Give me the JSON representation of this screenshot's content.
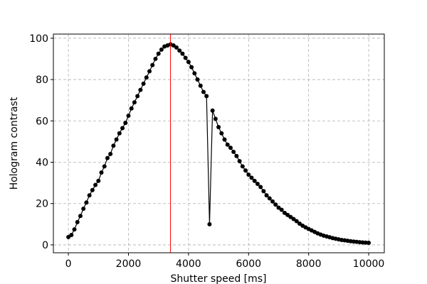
{
  "chart_data": {
    "type": "line",
    "xlabel": "Shutter speed [ms]",
    "ylabel": "Hologram contrast",
    "x": [
      0,
      100,
      200,
      300,
      400,
      500,
      600,
      700,
      800,
      900,
      1000,
      1100,
      1200,
      1300,
      1400,
      1500,
      1600,
      1700,
      1800,
      1900,
      2000,
      2100,
      2200,
      2300,
      2400,
      2500,
      2600,
      2700,
      2800,
      2900,
      3000,
      3100,
      3200,
      3300,
      3400,
      3500,
      3600,
      3700,
      3800,
      3900,
      4000,
      4100,
      4200,
      4300,
      4400,
      4500,
      4600,
      4700,
      4800,
      4900,
      5000,
      5100,
      5200,
      5300,
      5400,
      5500,
      5600,
      5700,
      5800,
      5900,
      6000,
      6100,
      6200,
      6300,
      6400,
      6500,
      6600,
      6700,
      6800,
      6900,
      7000,
      7100,
      7200,
      7300,
      7400,
      7500,
      7600,
      7700,
      7800,
      7900,
      8000,
      8100,
      8200,
      8300,
      8400,
      8500,
      8600,
      8700,
      8800,
      8900,
      9000,
      9100,
      9200,
      9300,
      9400,
      9500,
      9600,
      9700,
      9800,
      9900,
      10000
    ],
    "series": [
      {
        "color": "#000000",
        "values": [
          3.8,
          4.8,
          7.5,
          11,
          14,
          17.5,
          20.5,
          24,
          26.5,
          29,
          31,
          35,
          38,
          42,
          44,
          48,
          51,
          54,
          56.5,
          59,
          62.5,
          66,
          69,
          72,
          75,
          78,
          81,
          84,
          87,
          90,
          92.5,
          94.5,
          96,
          96.5,
          97,
          96.5,
          95.5,
          94,
          92.5,
          90.5,
          88.5,
          86,
          83,
          80,
          77,
          74,
          72,
          10,
          65,
          61,
          57,
          54,
          51,
          48.5,
          47,
          45,
          43,
          40.5,
          38,
          36,
          34,
          32.5,
          31,
          29.5,
          28,
          26,
          24,
          22.5,
          21,
          19.5,
          18,
          17,
          15.5,
          14.5,
          13.5,
          12.5,
          11.5,
          10.3,
          9.3,
          8.5,
          7.7,
          7,
          6.3,
          5.6,
          5,
          4.5,
          4.1,
          3.7,
          3.3,
          3,
          2.7,
          2.4,
          2.2,
          2,
          1.8,
          1.6,
          1.5,
          1.3,
          1.2,
          1.1,
          1
        ]
      }
    ],
    "vline": 3400,
    "vline_color": "#ff0000",
    "xlim": [
      -500,
      10520
    ],
    "ylim": [
      -3.8,
      102
    ],
    "xticks": [
      0,
      2000,
      4000,
      6000,
      8000,
      10000
    ],
    "yticks": [
      0,
      20,
      40,
      60,
      80,
      100
    ],
    "grid": true
  }
}
